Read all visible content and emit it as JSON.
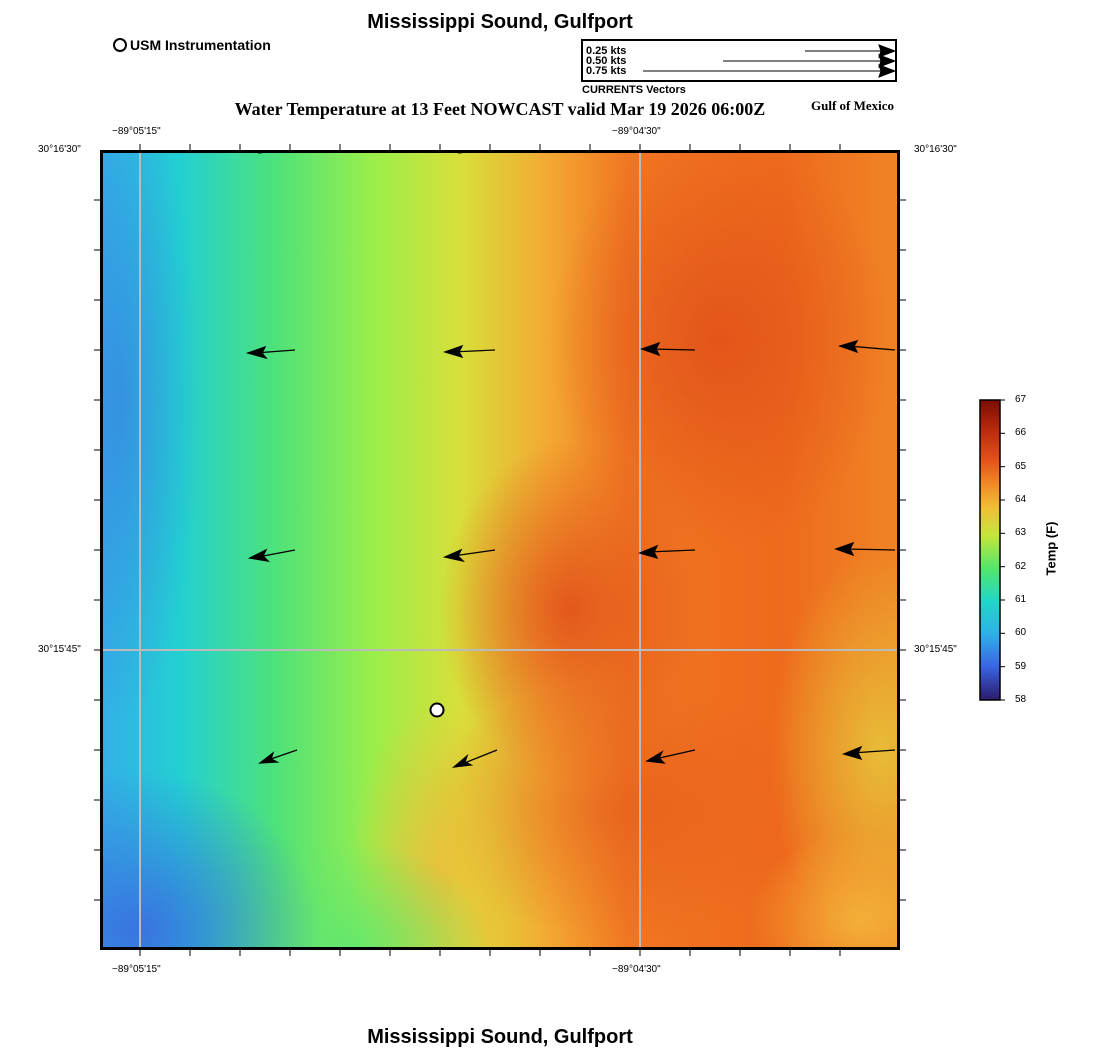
{
  "title": "Mississippi Sound, Gulfport",
  "subtitle": "Water Temperature at 13 Feet NOWCAST valid Mar 19 2026 06:00Z",
  "region_label": "Gulf of Mexico",
  "footer_title": "Mississippi Sound, Gulfport",
  "legend": {
    "marker_label": "USM Instrumentation",
    "vector_scale": [
      {
        "label": "0.25 kts",
        "speed_kts": 0.25
      },
      {
        "label": "0.50 kts",
        "speed_kts": 0.5
      },
      {
        "label": "0.75 kts",
        "speed_kts": 0.75
      }
    ],
    "vector_caption": "CURRENTS Vectors"
  },
  "axes": {
    "lon_ticks": [
      "−89°05'15\"",
      "−89°04'30\""
    ],
    "lat_ticks": [
      "30°16'30\"",
      "30°15'45\""
    ]
  },
  "colorbar": {
    "title": "Temp (F)",
    "min": 58,
    "max": 67,
    "labels": [
      "67",
      "66",
      "65",
      "64",
      "63",
      "62",
      "61",
      "60",
      "59",
      "58"
    ]
  },
  "colors": {
    "scale": [
      "#2b1a6b",
      "#3a64e0",
      "#2fb0e8",
      "#1ed8c8",
      "#33e08a",
      "#8ef052",
      "#d6e23a",
      "#f2ab32",
      "#f07a22",
      "#e2521a",
      "#b82a0c",
      "#7a0c04"
    ],
    "vector": "#000000",
    "grid": "#bbbbbb"
  }
}
